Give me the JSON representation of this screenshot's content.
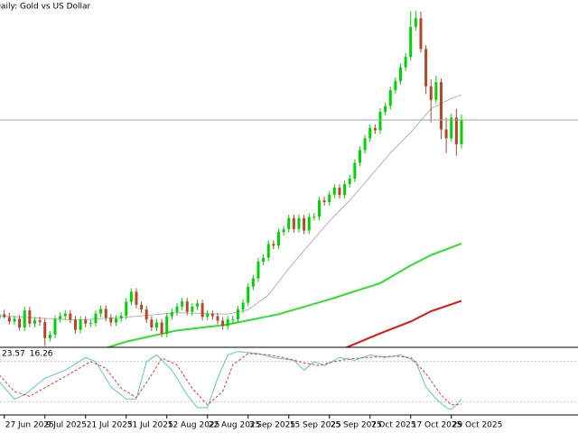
{
  "chart_data": [
    {
      "type": "candlestick",
      "title": "Daily: Gold vs US Dollar",
      "categories": [
        null,
        "27 Jun 2025",
        null,
        null,
        null,
        null,
        null,
        null,
        null,
        "9 Jul 2025",
        null,
        null,
        null,
        null,
        null,
        null,
        null,
        "21 Jul 2025",
        null,
        null,
        null,
        null,
        null,
        null,
        null,
        "31 Jul 2025",
        null,
        null,
        null,
        null,
        null,
        null,
        null,
        "12 Aug 2025",
        null,
        null,
        null,
        null,
        null,
        null,
        null,
        "22 Aug 2025",
        null,
        null,
        null,
        null,
        null,
        null,
        null,
        "3 Sep 2025",
        null,
        null,
        null,
        null,
        null,
        null,
        null,
        "15 Sep 2025",
        null,
        null,
        null,
        null,
        null,
        null,
        null,
        "25 Sep 2025",
        null,
        null,
        null,
        null,
        null,
        null,
        null,
        "7 Oct 2025",
        null,
        null,
        null,
        null,
        null,
        null,
        null,
        "17 Oct 2025",
        null,
        null,
        null,
        null,
        null,
        null,
        null,
        "29 Oct 2025",
        null,
        null
      ],
      "open": [
        3340,
        3355,
        3345,
        3330,
        3340,
        3310,
        3368,
        3323,
        3334,
        3328,
        3274,
        3286,
        3339,
        3349,
        3357,
        3337,
        3302,
        3336,
        3323,
        3325,
        3357,
        3373,
        3343,
        3327,
        3340,
        3350,
        3397,
        3431,
        3387,
        3371,
        3337,
        3310,
        3327,
        3289,
        3348,
        3362,
        3381,
        3398,
        3363,
        3381,
        3392,
        3346,
        3356,
        3348,
        3333,
        3315,
        3337,
        3338,
        3371,
        3394,
        3448,
        3476,
        3533,
        3546,
        3593,
        3587,
        3633,
        3642,
        3680,
        3643,
        3680,
        3638,
        3684,
        3685,
        3740,
        3734,
        3760,
        3783,
        3758,
        3795,
        3814,
        3867,
        3910,
        3950,
        3985,
        3977,
        4040,
        4059,
        4113,
        4144,
        4190,
        4226,
        4327,
        4356,
        4252,
        4126,
        4080,
        4140,
        3980,
        3950,
        4020,
        3930
      ],
      "high": [
        3365,
        3370,
        3360,
        3350,
        3352,
        3380,
        3380,
        3346,
        3346,
        3340,
        3298,
        3351,
        3361,
        3369,
        3369,
        3349,
        3348,
        3348,
        3337,
        3369,
        3385,
        3385,
        3355,
        3352,
        3362,
        3409,
        3443,
        3443,
        3399,
        3383,
        3349,
        3339,
        3339,
        3360,
        3374,
        3393,
        3410,
        3410,
        3393,
        3404,
        3404,
        3368,
        3368,
        3360,
        3345,
        3349,
        3350,
        3383,
        3406,
        3460,
        3488,
        3545,
        3558,
        3605,
        3605,
        3645,
        3654,
        3692,
        3692,
        3692,
        3692,
        3696,
        3697,
        3752,
        3752,
        3772,
        3795,
        3795,
        3807,
        3826,
        3879,
        3922,
        3962,
        3997,
        3997,
        4052,
        4071,
        4125,
        4156,
        4202,
        4238,
        4380,
        4381,
        4378,
        4265,
        4150,
        4161,
        4152,
        4020,
        4033,
        4050,
        4030
      ],
      "low": [
        3325,
        3340,
        3320,
        3318,
        3300,
        3298,
        3311,
        3311,
        3316,
        3248,
        3262,
        3274,
        3327,
        3337,
        3325,
        3290,
        3290,
        3311,
        3311,
        3313,
        3345,
        3331,
        3315,
        3315,
        3328,
        3338,
        3385,
        3375,
        3359,
        3325,
        3298,
        3298,
        3277,
        3277,
        3336,
        3350,
        3369,
        3351,
        3351,
        3369,
        3334,
        3334,
        3336,
        3321,
        3303,
        3303,
        3325,
        3326,
        3359,
        3382,
        3436,
        3464,
        3521,
        3534,
        3575,
        3575,
        3621,
        3630,
        3631,
        3631,
        3626,
        3626,
        3672,
        3673,
        3722,
        3722,
        3748,
        3746,
        3746,
        3783,
        3802,
        3855,
        3898,
        3938,
        3965,
        3965,
        4028,
        4047,
        4101,
        4132,
        4178,
        4214,
        4315,
        4240,
        4100,
        4004,
        4068,
        3947,
        3900,
        3940,
        3890,
        3915
      ],
      "close": [
        3355,
        3345,
        3330,
        3340,
        3310,
        3368,
        3323,
        3334,
        3328,
        3274,
        3286,
        3339,
        3349,
        3357,
        3337,
        3302,
        3336,
        3323,
        3325,
        3357,
        3373,
        3343,
        3327,
        3340,
        3350,
        3397,
        3431,
        3387,
        3371,
        3337,
        3310,
        3327,
        3289,
        3348,
        3362,
        3381,
        3398,
        3363,
        3381,
        3392,
        3346,
        3356,
        3348,
        3333,
        3315,
        3337,
        3338,
        3371,
        3394,
        3448,
        3476,
        3533,
        3546,
        3593,
        3587,
        3633,
        3642,
        3680,
        3643,
        3680,
        3638,
        3684,
        3685,
        3740,
        3734,
        3760,
        3783,
        3758,
        3795,
        3814,
        3867,
        3910,
        3950,
        3985,
        3977,
        4040,
        4059,
        4113,
        4144,
        4190,
        4226,
        4327,
        4356,
        4252,
        4126,
        4080,
        4140,
        3980,
        3950,
        4020,
        3930,
        4012
      ],
      "up_color": "#00d400",
      "down_color": "#b4472a",
      "ylim": [
        3243,
        4418
      ],
      "series": [
        {
          "color": "#b4b4b4",
          "x": [
            0,
            5,
            15,
            25,
            35,
            45,
            49,
            53,
            57,
            61,
            65,
            69,
            73,
            77,
            81,
            85,
            89,
            91
          ],
          "values": [
            3350,
            3345,
            3335,
            3345,
            3360,
            3355,
            3370,
            3420,
            3510,
            3590,
            3670,
            3740,
            3820,
            3900,
            3970,
            4050,
            4085,
            4097
          ]
        },
        {
          "color": "#2ee02e",
          "x": [
            19,
            25,
            35,
            45,
            55,
            65,
            75,
            81,
            85,
            91
          ],
          "values": [
            3230,
            3262,
            3300,
            3320,
            3355,
            3405,
            3460,
            3520,
            3555,
            3594
          ]
        },
        {
          "color": "#e01414",
          "x": [
            68,
            75,
            81,
            85,
            91
          ],
          "values": [
            3240,
            3290,
            3330,
            3365,
            3400
          ]
        }
      ]
    },
    {
      "type": "line",
      "ylim": [
        0,
        100
      ],
      "levels": [
        20,
        80
      ],
      "series": [
        {
          "color": "#5cc4d6",
          "x": [
            0,
            3,
            5,
            9,
            13,
            17,
            19,
            22,
            25,
            27,
            29,
            31,
            34,
            37,
            39,
            41,
            43,
            45,
            47,
            51,
            54,
            58,
            60,
            62,
            64,
            67,
            70,
            73,
            76,
            79,
            82,
            84,
            86,
            88,
            89,
            91
          ],
          "values": [
            50,
            24,
            30,
            55,
            67,
            86,
            80,
            42,
            24,
            24,
            80,
            90,
            67,
            30,
            11,
            11,
            55,
            90,
            95,
            92,
            86,
            82,
            67,
            80,
            74,
            86,
            82,
            90,
            86,
            90,
            80,
            42,
            24,
            11,
            8,
            23.57
          ]
        },
        {
          "color": "#e03c3c",
          "dashed": true,
          "x": [
            0,
            3,
            6,
            10,
            14,
            18,
            21,
            24,
            27,
            30,
            32,
            35,
            38,
            41,
            44,
            46,
            49,
            53,
            56,
            60,
            63,
            66,
            69,
            72,
            75,
            78,
            81,
            84,
            87,
            89,
            91
          ],
          "values": [
            60,
            35,
            28,
            45,
            62,
            80,
            70,
            40,
            26,
            60,
            85,
            75,
            40,
            15,
            35,
            75,
            92,
            90,
            86,
            78,
            74,
            80,
            84,
            86,
            87,
            88,
            86,
            62,
            30,
            15,
            16.26
          ]
        }
      ]
    }
  ]
}
